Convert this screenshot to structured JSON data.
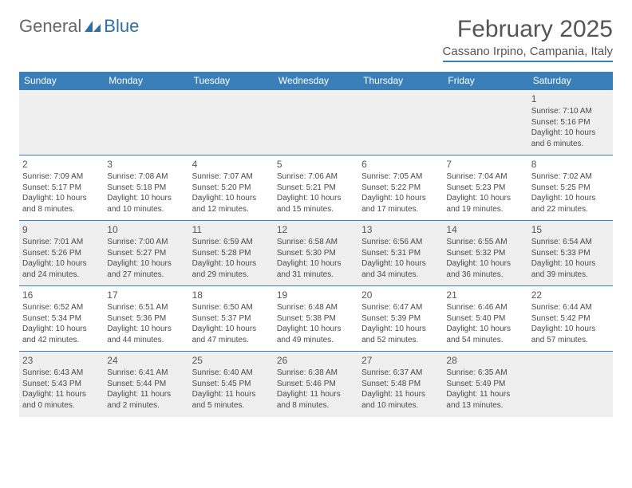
{
  "logo": {
    "textGray": "General",
    "textBlue": "Blue"
  },
  "title": "February 2025",
  "subtitle": "Cassano Irpino, Campania, Italy",
  "colors": {
    "accent": "#3b7fb8",
    "rowAlt": "#efefef",
    "text": "#4a4a4a",
    "titleText": "#555"
  },
  "dayHeaders": [
    "Sunday",
    "Monday",
    "Tuesday",
    "Wednesday",
    "Thursday",
    "Friday",
    "Saturday"
  ],
  "weeks": [
    [
      null,
      null,
      null,
      null,
      null,
      null,
      {
        "n": "1",
        "sr": "Sunrise: 7:10 AM",
        "ss": "Sunset: 5:16 PM",
        "dl": "Daylight: 10 hours and 6 minutes."
      }
    ],
    [
      {
        "n": "2",
        "sr": "Sunrise: 7:09 AM",
        "ss": "Sunset: 5:17 PM",
        "dl": "Daylight: 10 hours and 8 minutes."
      },
      {
        "n": "3",
        "sr": "Sunrise: 7:08 AM",
        "ss": "Sunset: 5:18 PM",
        "dl": "Daylight: 10 hours and 10 minutes."
      },
      {
        "n": "4",
        "sr": "Sunrise: 7:07 AM",
        "ss": "Sunset: 5:20 PM",
        "dl": "Daylight: 10 hours and 12 minutes."
      },
      {
        "n": "5",
        "sr": "Sunrise: 7:06 AM",
        "ss": "Sunset: 5:21 PM",
        "dl": "Daylight: 10 hours and 15 minutes."
      },
      {
        "n": "6",
        "sr": "Sunrise: 7:05 AM",
        "ss": "Sunset: 5:22 PM",
        "dl": "Daylight: 10 hours and 17 minutes."
      },
      {
        "n": "7",
        "sr": "Sunrise: 7:04 AM",
        "ss": "Sunset: 5:23 PM",
        "dl": "Daylight: 10 hours and 19 minutes."
      },
      {
        "n": "8",
        "sr": "Sunrise: 7:02 AM",
        "ss": "Sunset: 5:25 PM",
        "dl": "Daylight: 10 hours and 22 minutes."
      }
    ],
    [
      {
        "n": "9",
        "sr": "Sunrise: 7:01 AM",
        "ss": "Sunset: 5:26 PM",
        "dl": "Daylight: 10 hours and 24 minutes."
      },
      {
        "n": "10",
        "sr": "Sunrise: 7:00 AM",
        "ss": "Sunset: 5:27 PM",
        "dl": "Daylight: 10 hours and 27 minutes."
      },
      {
        "n": "11",
        "sr": "Sunrise: 6:59 AM",
        "ss": "Sunset: 5:28 PM",
        "dl": "Daylight: 10 hours and 29 minutes."
      },
      {
        "n": "12",
        "sr": "Sunrise: 6:58 AM",
        "ss": "Sunset: 5:30 PM",
        "dl": "Daylight: 10 hours and 31 minutes."
      },
      {
        "n": "13",
        "sr": "Sunrise: 6:56 AM",
        "ss": "Sunset: 5:31 PM",
        "dl": "Daylight: 10 hours and 34 minutes."
      },
      {
        "n": "14",
        "sr": "Sunrise: 6:55 AM",
        "ss": "Sunset: 5:32 PM",
        "dl": "Daylight: 10 hours and 36 minutes."
      },
      {
        "n": "15",
        "sr": "Sunrise: 6:54 AM",
        "ss": "Sunset: 5:33 PM",
        "dl": "Daylight: 10 hours and 39 minutes."
      }
    ],
    [
      {
        "n": "16",
        "sr": "Sunrise: 6:52 AM",
        "ss": "Sunset: 5:34 PM",
        "dl": "Daylight: 10 hours and 42 minutes."
      },
      {
        "n": "17",
        "sr": "Sunrise: 6:51 AM",
        "ss": "Sunset: 5:36 PM",
        "dl": "Daylight: 10 hours and 44 minutes."
      },
      {
        "n": "18",
        "sr": "Sunrise: 6:50 AM",
        "ss": "Sunset: 5:37 PM",
        "dl": "Daylight: 10 hours and 47 minutes."
      },
      {
        "n": "19",
        "sr": "Sunrise: 6:48 AM",
        "ss": "Sunset: 5:38 PM",
        "dl": "Daylight: 10 hours and 49 minutes."
      },
      {
        "n": "20",
        "sr": "Sunrise: 6:47 AM",
        "ss": "Sunset: 5:39 PM",
        "dl": "Daylight: 10 hours and 52 minutes."
      },
      {
        "n": "21",
        "sr": "Sunrise: 6:46 AM",
        "ss": "Sunset: 5:40 PM",
        "dl": "Daylight: 10 hours and 54 minutes."
      },
      {
        "n": "22",
        "sr": "Sunrise: 6:44 AM",
        "ss": "Sunset: 5:42 PM",
        "dl": "Daylight: 10 hours and 57 minutes."
      }
    ],
    [
      {
        "n": "23",
        "sr": "Sunrise: 6:43 AM",
        "ss": "Sunset: 5:43 PM",
        "dl": "Daylight: 11 hours and 0 minutes."
      },
      {
        "n": "24",
        "sr": "Sunrise: 6:41 AM",
        "ss": "Sunset: 5:44 PM",
        "dl": "Daylight: 11 hours and 2 minutes."
      },
      {
        "n": "25",
        "sr": "Sunrise: 6:40 AM",
        "ss": "Sunset: 5:45 PM",
        "dl": "Daylight: 11 hours and 5 minutes."
      },
      {
        "n": "26",
        "sr": "Sunrise: 6:38 AM",
        "ss": "Sunset: 5:46 PM",
        "dl": "Daylight: 11 hours and 8 minutes."
      },
      {
        "n": "27",
        "sr": "Sunrise: 6:37 AM",
        "ss": "Sunset: 5:48 PM",
        "dl": "Daylight: 11 hours and 10 minutes."
      },
      {
        "n": "28",
        "sr": "Sunrise: 6:35 AM",
        "ss": "Sunset: 5:49 PM",
        "dl": "Daylight: 11 hours and 13 minutes."
      },
      null
    ]
  ]
}
